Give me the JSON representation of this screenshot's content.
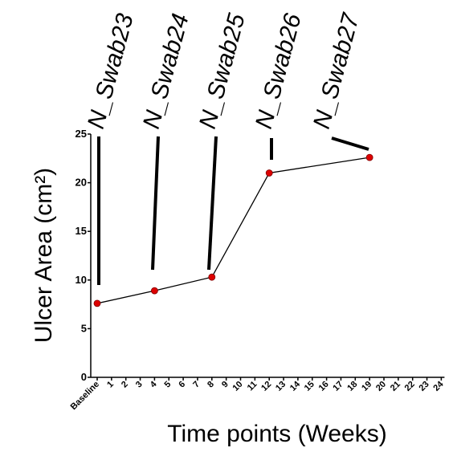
{
  "chart_data": {
    "type": "line",
    "xlabel": "Time points (Weeks)",
    "ylabel": "Ulcer Area (cm²)",
    "ylim": [
      0,
      25
    ],
    "yticks": [
      "0",
      "5",
      "10",
      "15",
      "20",
      "25"
    ],
    "xtick_labels": [
      "Baseline",
      "1",
      "2",
      "3",
      "4",
      "5",
      "6",
      "7",
      "8",
      "9",
      "10",
      "11",
      "12",
      "13",
      "14",
      "15",
      "16",
      "17",
      "18",
      "19",
      "20",
      "21",
      "22",
      "23",
      "24"
    ],
    "series": [
      {
        "color": "#dd0000",
        "x": [
          0,
          4,
          8,
          12,
          19
        ],
        "values": [
          7.6,
          8.9,
          10.3,
          21.0,
          22.6
        ]
      }
    ],
    "annotations": [
      {
        "label": "N_Swab23",
        "x": 0
      },
      {
        "label": "N_Swab24",
        "x": 4
      },
      {
        "label": "N_Swab25",
        "x": 8
      },
      {
        "label": "N_Swab26",
        "x": 12
      },
      {
        "label": "N_Swab27",
        "x": 19
      }
    ],
    "grid": false
  }
}
